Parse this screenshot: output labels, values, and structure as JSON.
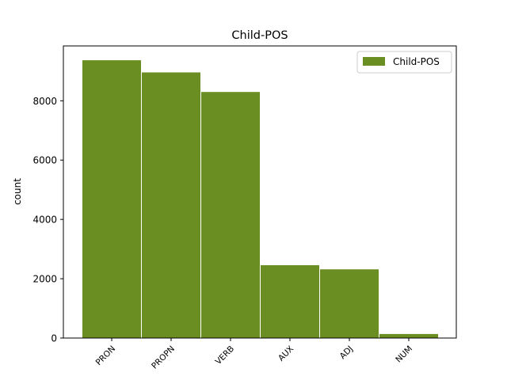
{
  "chart_data": {
    "type": "bar",
    "title": "Child-POS",
    "xlabel": "",
    "ylabel": "count",
    "categories": [
      "PRON",
      "PROPN",
      "VERB",
      "AUX",
      "ADJ",
      "NUM"
    ],
    "series": [
      {
        "name": "Child-POS",
        "values": [
          9380,
          8970,
          8310,
          2470,
          2330,
          150
        ]
      }
    ],
    "ylim": [
      0,
      9850
    ],
    "yticks": [
      0,
      2000,
      4000,
      6000,
      8000
    ],
    "grid": false,
    "legend_position": "top-right",
    "colors": {
      "bar": "#6b8e23",
      "bar_edge": "#ffffff"
    }
  }
}
